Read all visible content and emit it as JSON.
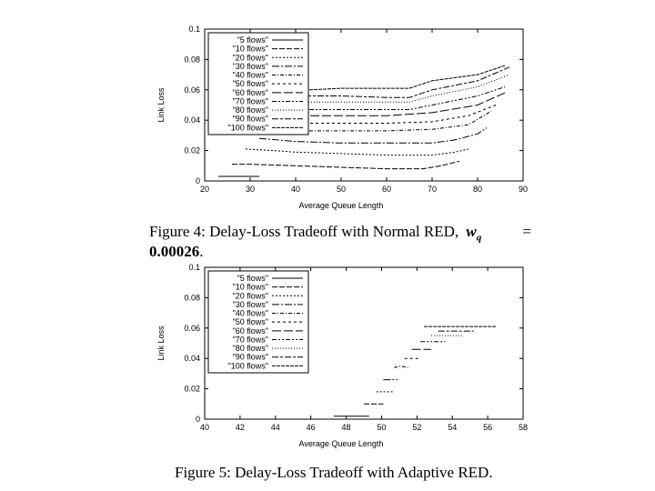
{
  "figure4": {
    "caption_part1": "Figure 4:  Delay-Loss Tradeoff with Normal RED,",
    "caption_wq": "w",
    "caption_wq_sub": "q",
    "caption_eq": "=",
    "caption_value": "0.00026",
    "caption_end": "."
  },
  "figure5": {
    "caption": "Figure 5: Delay-Loss Tradeoff with Adaptive RED."
  },
  "chart_data": [
    {
      "type": "line",
      "xlabel": "Average Queue Length",
      "ylabel": "Link Loss",
      "xlim": [
        20,
        90
      ],
      "ylim": [
        0,
        0.1
      ],
      "x_ticks": [
        "20",
        "30",
        "40",
        "50",
        "60",
        "70",
        "80",
        "90"
      ],
      "y_ticks": [
        "0",
        "0.02",
        "0.04",
        "0.06",
        "0.08",
        "0.1"
      ],
      "legend": "top-left",
      "series": [
        {
          "name": "\"5 flows\"",
          "x": [
            23,
            25,
            30,
            32
          ],
          "y": [
            0.003,
            0.003,
            0.003,
            0.003
          ]
        },
        {
          "name": "\"10 flows\"",
          "x": [
            26,
            30,
            40,
            50,
            60,
            68,
            72,
            76
          ],
          "y": [
            0.011,
            0.011,
            0.01,
            0.009,
            0.008,
            0.008,
            0.01,
            0.013
          ]
        },
        {
          "name": "\"20 flows\"",
          "x": [
            29,
            35,
            40,
            50,
            60,
            70,
            75,
            78
          ],
          "y": [
            0.021,
            0.02,
            0.019,
            0.018,
            0.017,
            0.017,
            0.019,
            0.021
          ]
        },
        {
          "name": "\"30 flows\"",
          "x": [
            32,
            40,
            50,
            60,
            70,
            75,
            80,
            82
          ],
          "y": [
            0.028,
            0.026,
            0.025,
            0.025,
            0.025,
            0.027,
            0.031,
            0.035
          ]
        },
        {
          "name": "\"40 flows\"",
          "x": [
            34,
            40,
            50,
            60,
            70,
            78,
            83
          ],
          "y": [
            0.033,
            0.033,
            0.033,
            0.033,
            0.034,
            0.037,
            0.046
          ]
        },
        {
          "name": "\"50 flows\"",
          "x": [
            36,
            40,
            50,
            60,
            70,
            78,
            84
          ],
          "y": [
            0.038,
            0.038,
            0.038,
            0.038,
            0.039,
            0.043,
            0.05
          ]
        },
        {
          "name": "\"60 flows\"",
          "x": [
            38,
            40,
            50,
            60,
            70,
            80,
            86
          ],
          "y": [
            0.043,
            0.043,
            0.043,
            0.043,
            0.045,
            0.05,
            0.058
          ]
        },
        {
          "name": "\"70 flows\"",
          "x": [
            40,
            50,
            60,
            65,
            70,
            80,
            86
          ],
          "y": [
            0.047,
            0.047,
            0.047,
            0.047,
            0.05,
            0.056,
            0.062
          ]
        },
        {
          "name": "\"80 flows\"",
          "x": [
            41,
            50,
            60,
            65,
            70,
            80,
            87
          ],
          "y": [
            0.052,
            0.052,
            0.052,
            0.052,
            0.056,
            0.062,
            0.07
          ]
        },
        {
          "name": "\"90 flows\"",
          "x": [
            42,
            50,
            60,
            65,
            70,
            80,
            87
          ],
          "y": [
            0.056,
            0.056,
            0.055,
            0.055,
            0.06,
            0.066,
            0.075
          ]
        },
        {
          "name": "\"100 flows\"",
          "x": [
            43,
            50,
            60,
            65,
            70,
            80,
            86
          ],
          "y": [
            0.06,
            0.061,
            0.061,
            0.061,
            0.066,
            0.07,
            0.076
          ]
        }
      ]
    },
    {
      "type": "line",
      "xlabel": "Average Queue Length",
      "ylabel": "Link Loss",
      "xlim": [
        40,
        58
      ],
      "ylim": [
        0,
        0.1
      ],
      "x_ticks": [
        "40",
        "42",
        "44",
        "46",
        "48",
        "50",
        "52",
        "54",
        "56",
        "58"
      ],
      "y_ticks": [
        "0",
        "0.02",
        "0.04",
        "0.06",
        "0.08",
        "0.1"
      ],
      "legend": "top-left",
      "series": [
        {
          "name": "\"5 flows\"",
          "x": [
            47.3,
            48.0,
            48.7,
            49.3
          ],
          "y": [
            0.002,
            0.002,
            0.002,
            0.002
          ]
        },
        {
          "name": "\"10 flows\"",
          "x": [
            49.0,
            49.6,
            50.1
          ],
          "y": [
            0.01,
            0.01,
            0.01
          ]
        },
        {
          "name": "\"20 flows\"",
          "x": [
            49.7,
            50.2,
            50.7
          ],
          "y": [
            0.018,
            0.018,
            0.018
          ]
        },
        {
          "name": "\"30 flows\"",
          "x": [
            50.1,
            50.5,
            50.9
          ],
          "y": [
            0.026,
            0.026,
            0.026
          ]
        },
        {
          "name": "\"40 flows\"",
          "x": [
            50.7,
            51.1,
            51.5
          ],
          "y": [
            0.034,
            0.035,
            0.034
          ]
        },
        {
          "name": "\"50 flows\"",
          "x": [
            51.3,
            51.7,
            52.2
          ],
          "y": [
            0.04,
            0.04,
            0.04
          ]
        },
        {
          "name": "\"60 flows\"",
          "x": [
            51.7,
            52.3,
            52.8
          ],
          "y": [
            0.046,
            0.046,
            0.046
          ]
        },
        {
          "name": "\"70 flows\"",
          "x": [
            52.2,
            52.9,
            53.6
          ],
          "y": [
            0.051,
            0.051,
            0.051
          ]
        },
        {
          "name": "\"80 flows\"",
          "x": [
            52.8,
            53.6,
            54.6
          ],
          "y": [
            0.055,
            0.055,
            0.055
          ]
        },
        {
          "name": "\"90 flows\"",
          "x": [
            53.2,
            54.2,
            55.2
          ],
          "y": [
            0.058,
            0.058,
            0.058
          ]
        },
        {
          "name": "\"100 flows\"",
          "x": [
            52.4,
            53.8,
            55.0,
            56.5
          ],
          "y": [
            0.061,
            0.061,
            0.061,
            0.061
          ]
        }
      ]
    }
  ]
}
